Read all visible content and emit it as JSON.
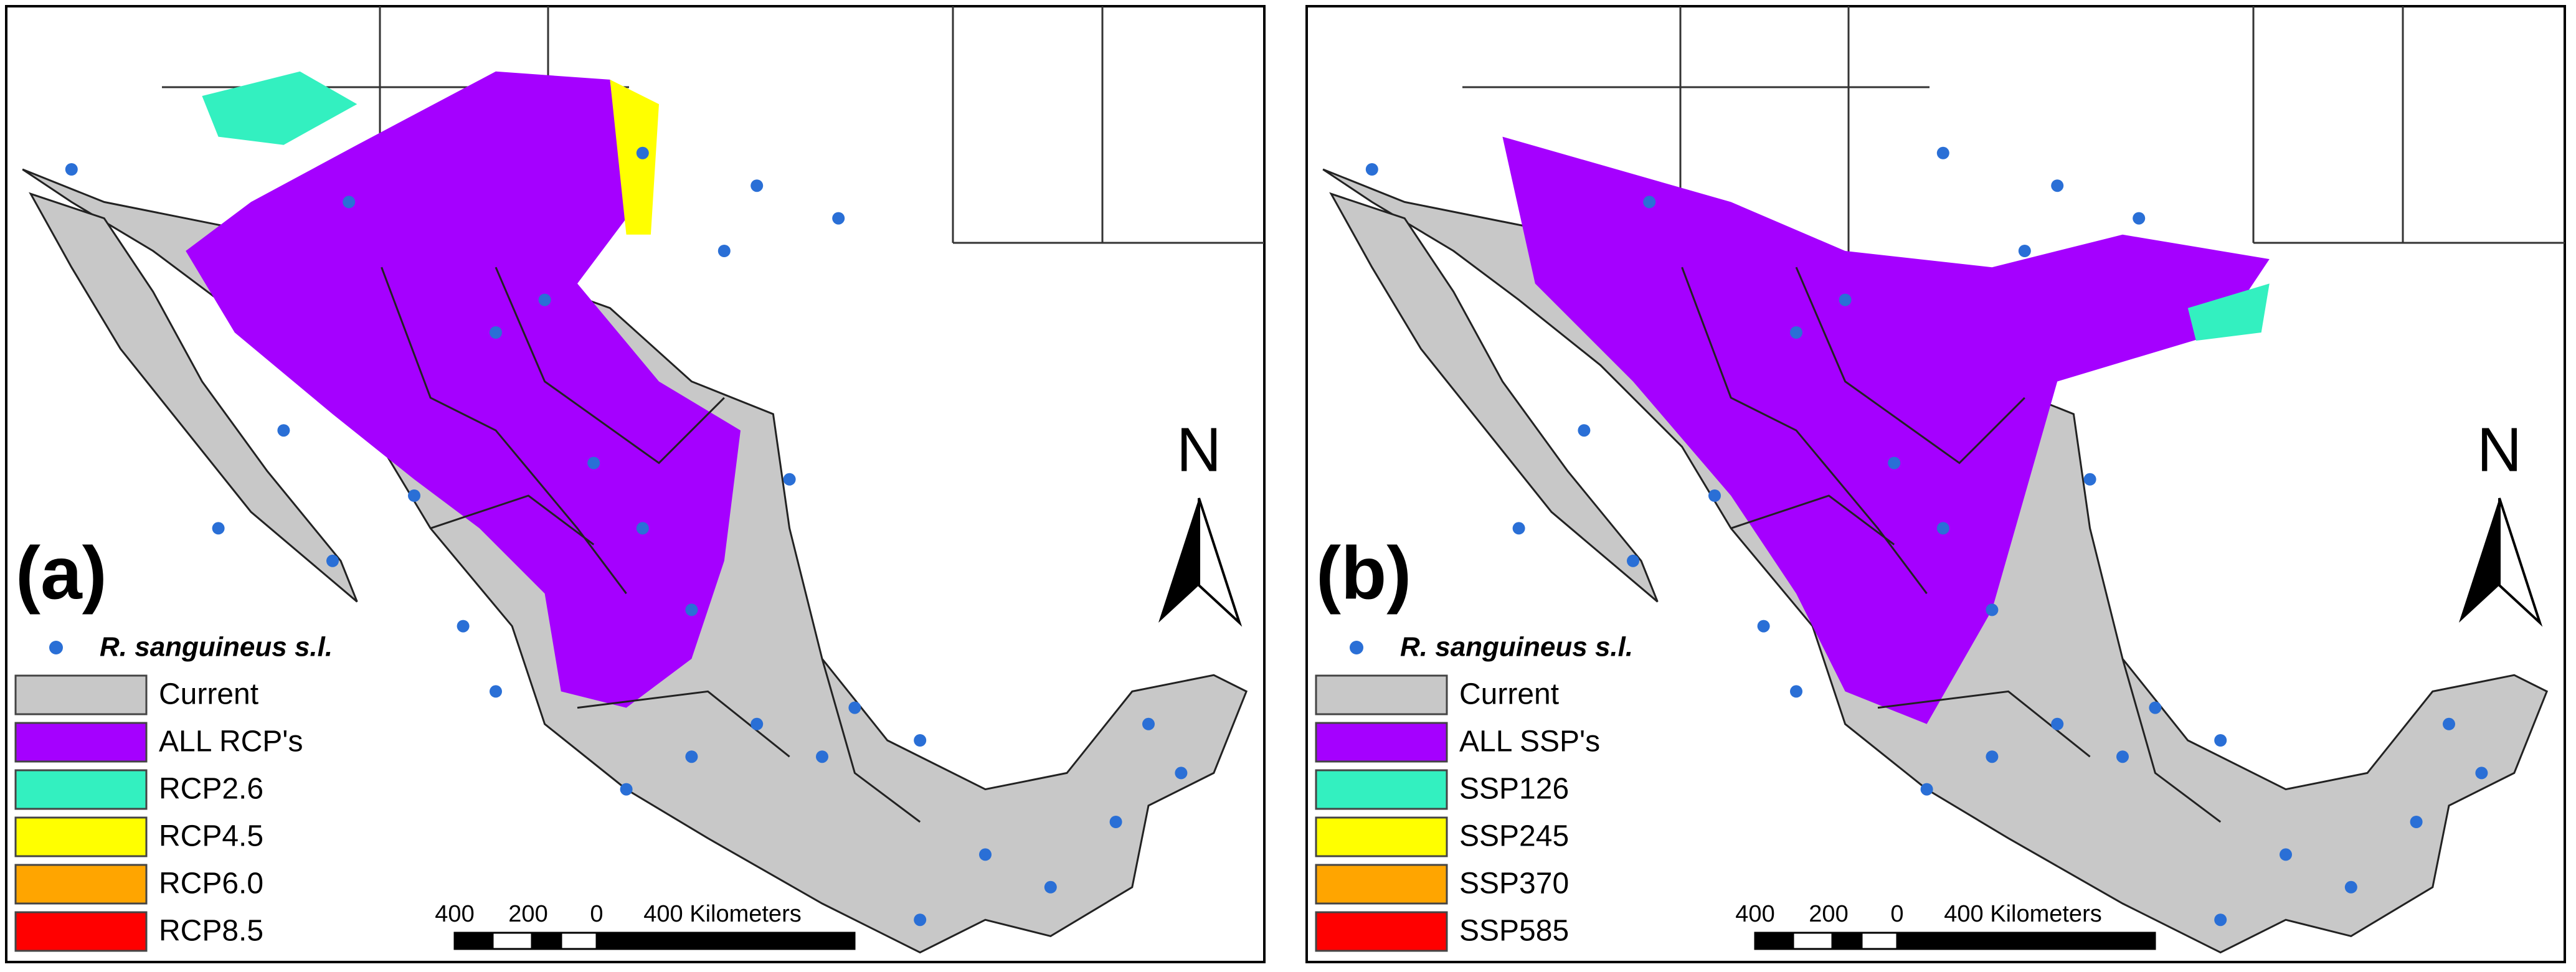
{
  "panels": [
    {
      "label": "(a)",
      "north": "N",
      "legend": {
        "species": "R. sanguineus s.l.",
        "items": [
          {
            "label": "Current",
            "color": "#c8c8c8"
          },
          {
            "label": "ALL RCP's",
            "color": "#a500ff"
          },
          {
            "label": "RCP2.6",
            "color": "#33f0c0"
          },
          {
            "label": "RCP4.5",
            "color": "#ffff00"
          },
          {
            "label": "RCP6.0",
            "color": "#ffa500"
          },
          {
            "label": "RCP8.5",
            "color": "#ff0000"
          }
        ]
      },
      "scale_bar": [
        "400",
        "200",
        "0",
        "400 Kilometers"
      ]
    },
    {
      "label": "(b)",
      "north": "N",
      "legend": {
        "species": "R. sanguineus s.l.",
        "items": [
          {
            "label": "Current",
            "color": "#c8c8c8"
          },
          {
            "label": "ALL SSP's",
            "color": "#a500ff"
          },
          {
            "label": "SSP126",
            "color": "#33f0c0"
          },
          {
            "label": "SSP245",
            "color": "#ffff00"
          },
          {
            "label": "SSP370",
            "color": "#ffa500"
          },
          {
            "label": "SSP585",
            "color": "#ff0000"
          }
        ]
      },
      "scale_bar": [
        "400",
        "200",
        "0",
        "400 Kilometers"
      ]
    }
  ]
}
